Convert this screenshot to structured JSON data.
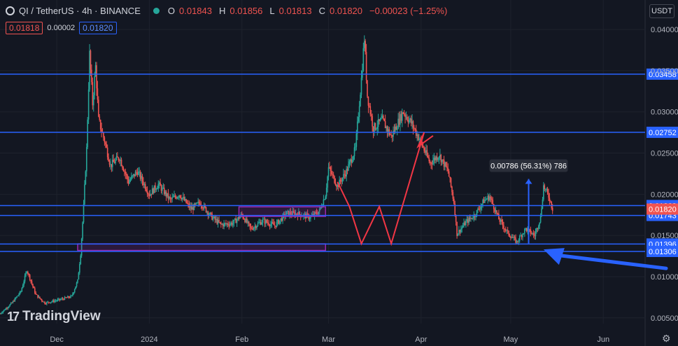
{
  "header": {
    "symbol": "QI / TetherUS · 4h · BINANCE",
    "open_label": "O",
    "open": "0.01843",
    "high_label": "H",
    "high": "0.01856",
    "low_label": "L",
    "low": "0.01813",
    "close_label": "C",
    "close": "0.01820",
    "change": "−0.00023 (−1.25%)"
  },
  "bid_ask": {
    "bid": "0.01818",
    "spread": "0.00002",
    "ask": "0.01820"
  },
  "currency_button": "USDT",
  "brand": "TradingView",
  "colors": {
    "background": "#131722",
    "up": "#26a69a",
    "down": "#ef5350",
    "hline": "#2962ff",
    "zigzag": "#f23645",
    "box": "#9c27b0",
    "arrow": "#2962ff"
  },
  "chart_data": {
    "type": "candlestick",
    "x_ticks": [
      "Dec",
      "2024",
      "Feb",
      "Mar",
      "Apr",
      "May",
      "Jun"
    ],
    "y_ticks": [
      "0.04000",
      "0.03500",
      "0.03000",
      "0.02500",
      "0.02000",
      "0.01500",
      "0.01000",
      "0.00500"
    ],
    "y_range": [
      0.0043,
      0.0412
    ],
    "x_range": [
      "2023-11-12",
      "2024-06-15"
    ],
    "last_price": 0.0182,
    "price_series": [
      [
        "2023-11-12",
        0.0055
      ],
      [
        "2023-11-16",
        0.0068
      ],
      [
        "2023-11-19",
        0.0082
      ],
      [
        "2023-11-21",
        0.0108
      ],
      [
        "2023-11-24",
        0.0078
      ],
      [
        "2023-11-27",
        0.0068
      ],
      [
        "2023-12-02",
        0.0072
      ],
      [
        "2023-12-06",
        0.0076
      ],
      [
        "2023-12-08",
        0.0095
      ],
      [
        "2023-12-09",
        0.0128
      ],
      [
        "2023-12-10",
        0.0185
      ],
      [
        "2023-12-11",
        0.0255
      ],
      [
        "2023-12-12",
        0.037
      ],
      [
        "2023-12-13",
        0.031
      ],
      [
        "2023-12-14",
        0.0355
      ],
      [
        "2023-12-15",
        0.029
      ],
      [
        "2023-12-17",
        0.0265
      ],
      [
        "2023-12-19",
        0.0235
      ],
      [
        "2023-12-22",
        0.0245
      ],
      [
        "2023-12-25",
        0.0215
      ],
      [
        "2023-12-28",
        0.0228
      ],
      [
        "2024-01-01",
        0.02
      ],
      [
        "2024-01-04",
        0.0212
      ],
      [
        "2024-01-08",
        0.0193
      ],
      [
        "2024-01-11",
        0.02
      ],
      [
        "2024-01-15",
        0.0182
      ],
      [
        "2024-01-18",
        0.019
      ],
      [
        "2024-01-22",
        0.0172
      ],
      [
        "2024-01-25",
        0.0163
      ],
      [
        "2024-01-29",
        0.0165
      ],
      [
        "2024-02-01",
        0.0175
      ],
      [
        "2024-02-04",
        0.0158
      ],
      [
        "2024-02-08",
        0.0168
      ],
      [
        "2024-02-12",
        0.0162
      ],
      [
        "2024-02-16",
        0.0177
      ],
      [
        "2024-02-20",
        0.0176
      ],
      [
        "2024-02-24",
        0.0172
      ],
      [
        "2024-02-27",
        0.018
      ],
      [
        "2024-02-29",
        0.02
      ],
      [
        "2024-03-01",
        0.0232
      ],
      [
        "2024-03-04",
        0.021
      ],
      [
        "2024-03-07",
        0.0228
      ],
      [
        "2024-03-10",
        0.0255
      ],
      [
        "2024-03-12",
        0.034
      ],
      [
        "2024-03-13",
        0.039
      ],
      [
        "2024-03-14",
        0.032
      ],
      [
        "2024-03-16",
        0.028
      ],
      [
        "2024-03-19",
        0.029
      ],
      [
        "2024-03-22",
        0.027
      ],
      [
        "2024-03-26",
        0.03
      ],
      [
        "2024-03-29",
        0.0285
      ],
      [
        "2024-04-01",
        0.0262
      ],
      [
        "2024-04-04",
        0.0238
      ],
      [
        "2024-04-07",
        0.0248
      ],
      [
        "2024-04-10",
        0.0228
      ],
      [
        "2024-04-12",
        0.019
      ],
      [
        "2024-04-13",
        0.0152
      ],
      [
        "2024-04-16",
        0.0166
      ],
      [
        "2024-04-19",
        0.0175
      ],
      [
        "2024-04-22",
        0.0192
      ],
      [
        "2024-04-24",
        0.0197
      ],
      [
        "2024-04-27",
        0.017
      ],
      [
        "2024-04-30",
        0.0153
      ],
      [
        "2024-05-03",
        0.0142
      ],
      [
        "2024-05-06",
        0.0158
      ],
      [
        "2024-05-09",
        0.015
      ],
      [
        "2024-05-11",
        0.0172
      ],
      [
        "2024-05-12",
        0.021
      ],
      [
        "2024-05-14",
        0.0195
      ],
      [
        "2024-05-15",
        0.0182
      ]
    ],
    "horizontal_levels": [
      0.03458,
      0.02752,
      0.01863,
      0.01743,
      0.01396,
      0.01306
    ],
    "level_labels": [
      "0.03458",
      "0.02752",
      "0.01863",
      "0.01743",
      "0.01396",
      "0.01306"
    ],
    "last_label": "0.01820",
    "zones": [
      {
        "x0": "2024-01-31",
        "x1": "2024-02-29",
        "y0": 0.01731,
        "y1": 0.01847
      },
      {
        "x0": "2023-12-08",
        "x1": "2024-02-29",
        "y0": 0.01318,
        "y1": 0.01398
      }
    ],
    "zigzag": [
      [
        "2024-03-04",
        0.0215
      ],
      [
        "2024-03-08",
        0.0185
      ],
      [
        "2024-03-12",
        0.014
      ],
      [
        "2024-03-18",
        0.0185
      ],
      [
        "2024-03-22",
        0.014
      ],
      [
        "2024-04-02",
        0.0275
      ],
      [
        "2024-03-31",
        0.0258
      ],
      [
        "2024-04-05",
        0.0271
      ]
    ],
    "measure": {
      "x": "2024-05-07",
      "y0": 0.014,
      "y1": 0.02186,
      "label": "0.00786 (56.31%) 786"
    },
    "callout_arrow": {
      "from": [
        "2024-06-15",
        0.011
      ],
      "to": [
        "2024-05-12",
        0.0133
      ]
    }
  }
}
